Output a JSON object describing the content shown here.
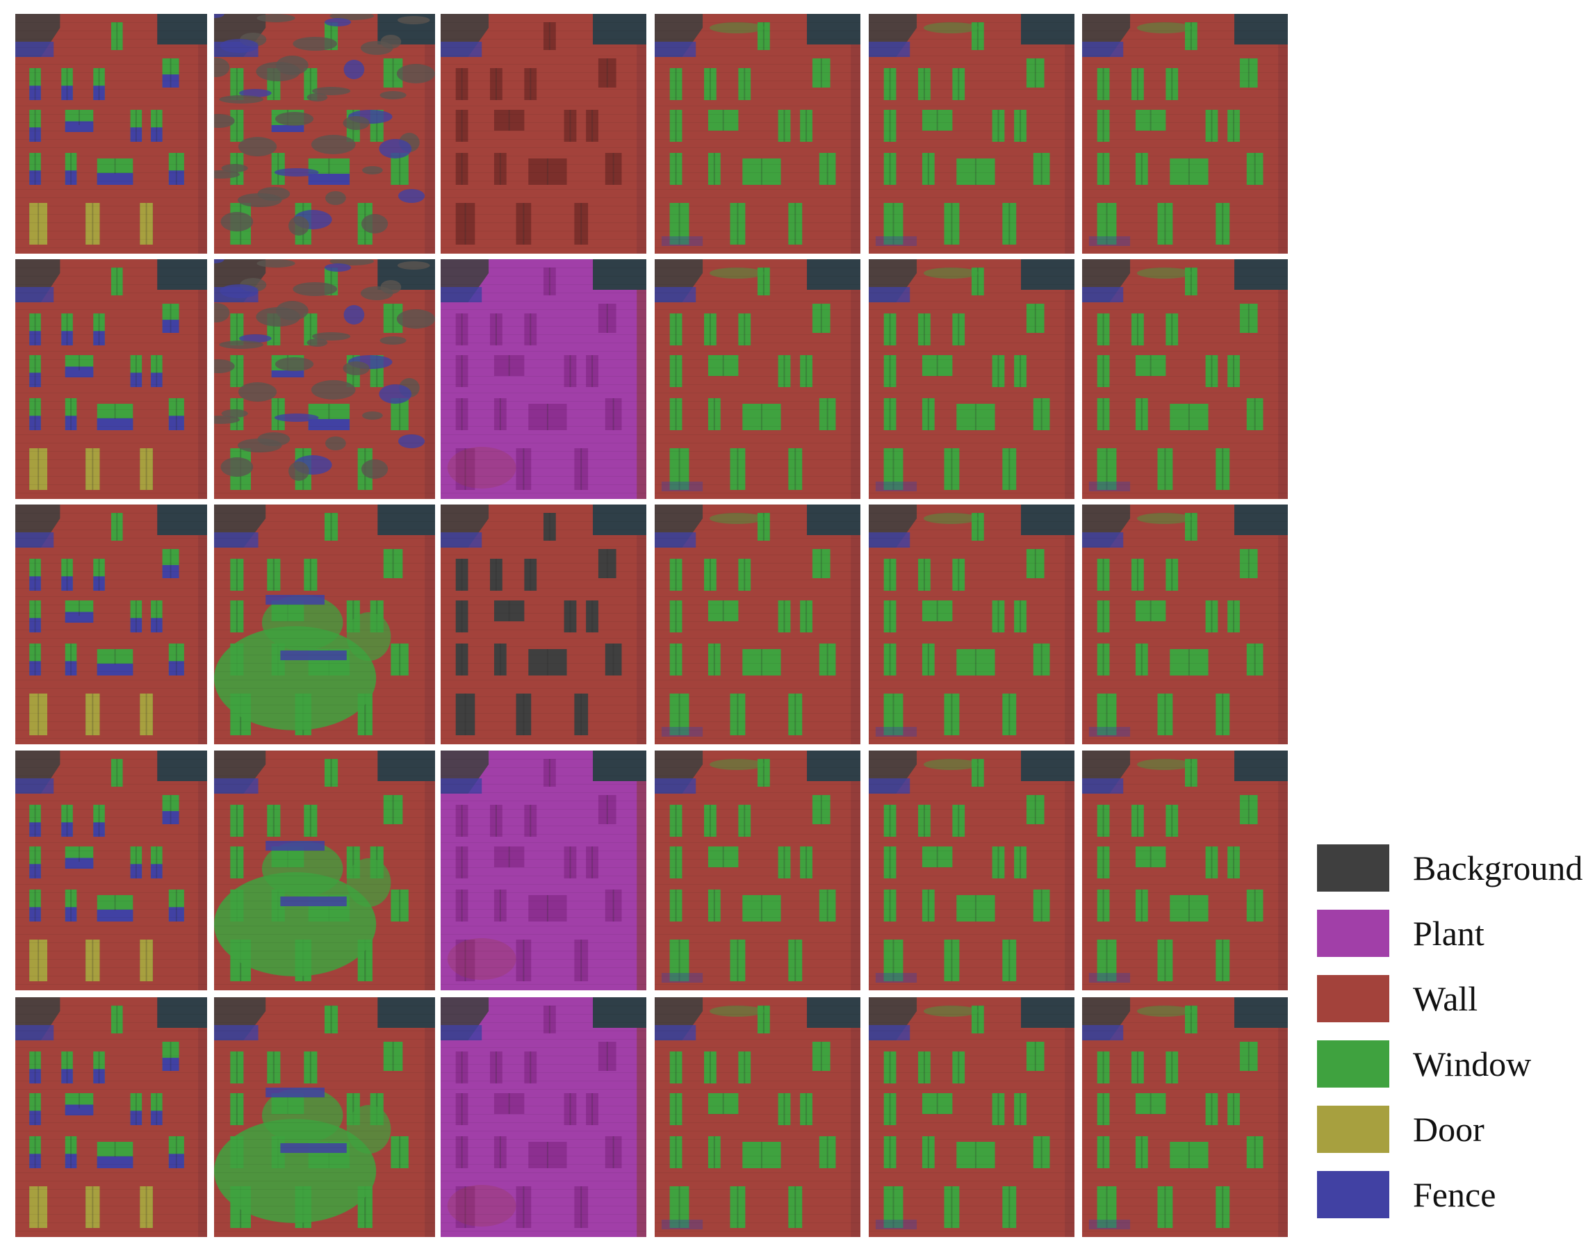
{
  "legend": {
    "items": [
      {
        "label": "Background",
        "color": "#3f3f3f"
      },
      {
        "label": "Plant",
        "color": "#a13fa8"
      },
      {
        "label": "Wall",
        "color": "#a3423b"
      },
      {
        "label": "Window",
        "color": "#3fa23f"
      },
      {
        "label": "Door",
        "color": "#a7a03f"
      },
      {
        "label": "Fence",
        "color": "#4141a3"
      }
    ]
  },
  "grid": {
    "rows": 5,
    "cols": 6,
    "colors": {
      "background": "#3f3f3f",
      "plant": "#a13fa8",
      "wall": "#a3423b",
      "window": "#3fa23f",
      "door": "#a7a03f",
      "fence": "#4141a3",
      "sky": "#2f3f48",
      "frame": "#8a8a8a"
    },
    "cells": [
      {
        "style": "gt"
      },
      {
        "style": "noisy"
      },
      {
        "style": "wall-only"
      },
      {
        "style": "window"
      },
      {
        "style": "window"
      },
      {
        "style": "window"
      },
      {
        "style": "gt"
      },
      {
        "style": "noisy"
      },
      {
        "style": "plant"
      },
      {
        "style": "window"
      },
      {
        "style": "window"
      },
      {
        "style": "window"
      },
      {
        "style": "gt"
      },
      {
        "style": "green-blob"
      },
      {
        "style": "dark-window"
      },
      {
        "style": "window"
      },
      {
        "style": "window"
      },
      {
        "style": "window"
      },
      {
        "style": "gt"
      },
      {
        "style": "green-blob"
      },
      {
        "style": "plant"
      },
      {
        "style": "window"
      },
      {
        "style": "window"
      },
      {
        "style": "window"
      },
      {
        "style": "gt"
      },
      {
        "style": "green-blob"
      },
      {
        "style": "plant"
      },
      {
        "style": "window"
      },
      {
        "style": "window"
      },
      {
        "style": "window"
      }
    ]
  }
}
